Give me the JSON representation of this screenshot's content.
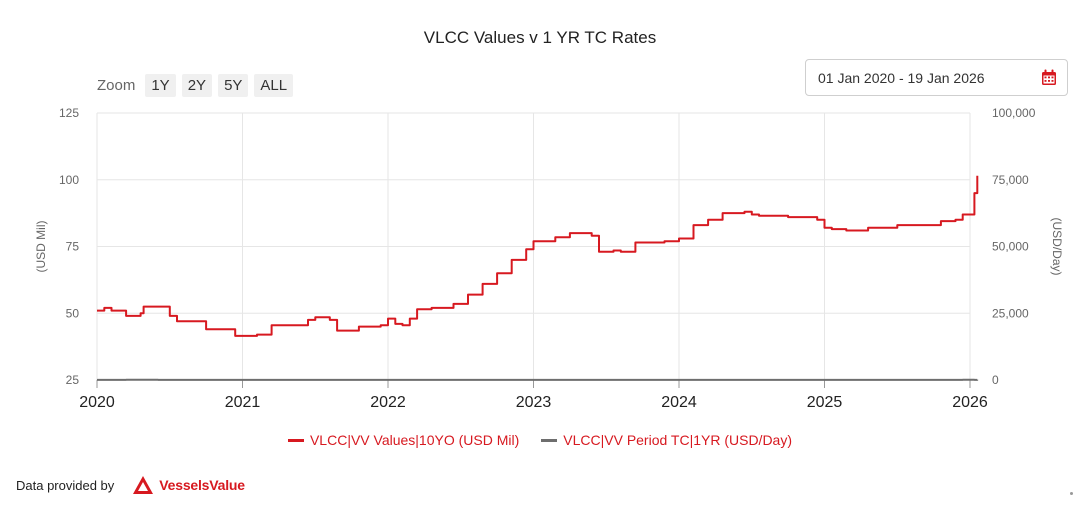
{
  "title": "VLCC Values v 1 YR TC Rates",
  "zoom": {
    "label": "Zoom",
    "buttons": [
      "1Y",
      "2Y",
      "5Y",
      "ALL"
    ]
  },
  "date_range": {
    "value": "01 Jan 2020 - 19 Jan 2026",
    "icon": "calendar-icon",
    "icon_color": "#d71920"
  },
  "footer": {
    "credit": "Data provided by",
    "logo_text": "VesselsValue",
    "logo_color": "#d71920"
  },
  "chart_data": {
    "type": "line",
    "title": "VLCC Values v 1 YR TC Rates",
    "x_axis": {
      "type": "year",
      "range": [
        2020.0,
        2026.0
      ],
      "ticks": [
        "2020",
        "2021",
        "2022",
        "2023",
        "2024",
        "2025",
        "2026"
      ]
    },
    "y_left": {
      "label": "(USD Mil)",
      "range": [
        25,
        125
      ],
      "ticks": [
        "25",
        "50",
        "75",
        "100",
        "125"
      ]
    },
    "y_right": {
      "label": "(USD/Day)",
      "range": [
        0,
        100000
      ],
      "ticks": [
        "0",
        "25,000",
        "50,000",
        "75,000",
        "100,000"
      ]
    },
    "grid": true,
    "legend_position": "bottom",
    "series": [
      {
        "name": "VLCC|VV Values|10YO (USD Mil)",
        "color": "#d71920",
        "axis": "left",
        "x": [
          2020.0,
          2020.05,
          2020.1,
          2020.2,
          2020.3,
          2020.32,
          2020.5,
          2020.55,
          2020.75,
          2020.95,
          2021.1,
          2021.2,
          2021.35,
          2021.45,
          2021.5,
          2021.6,
          2021.65,
          2021.8,
          2021.95,
          2022.0,
          2022.05,
          2022.1,
          2022.15,
          2022.2,
          2022.3,
          2022.45,
          2022.55,
          2022.65,
          2022.75,
          2022.85,
          2022.95,
          2023.0,
          2023.05,
          2023.15,
          2023.25,
          2023.35,
          2023.4,
          2023.45,
          2023.55,
          2023.6,
          2023.7,
          2023.9,
          2024.0,
          2024.1,
          2024.2,
          2024.3,
          2024.45,
          2024.5,
          2024.55,
          2024.75,
          2024.95,
          2025.0,
          2025.05,
          2025.15,
          2025.3,
          2025.5,
          2025.7,
          2025.8,
          2025.9,
          2025.95,
          2026.0,
          2026.03,
          2026.05
        ],
        "y": [
          51,
          52,
          51,
          49,
          50,
          52.5,
          49,
          47,
          44,
          41.5,
          42,
          45.5,
          45.5,
          47.5,
          48.5,
          47.5,
          43.5,
          45,
          45.5,
          48,
          46,
          45.5,
          48,
          51.5,
          52,
          53.5,
          57,
          61,
          65,
          70,
          74,
          77,
          77,
          78.5,
          80,
          80,
          79,
          73,
          73.5,
          73,
          76.5,
          77,
          78,
          83,
          85,
          87.5,
          88,
          87,
          86.5,
          86,
          85,
          82,
          81.5,
          81,
          82,
          83,
          83,
          84.5,
          85,
          87,
          87,
          95,
          101.5
        ]
      },
      {
        "name": "VLCC|VV Period TC|1YR (USD/Day)",
        "color": "#6e6e6e",
        "axis": "right",
        "x": [
          2020.0,
          2020.03,
          2020.08,
          2020.12,
          2020.16,
          2020.2,
          2020.23,
          2020.27,
          2020.3,
          2020.33,
          2020.37,
          2020.42,
          2020.48,
          2020.55,
          2020.65,
          2020.8,
          2021.0,
          2021.2,
          2021.3,
          2021.5,
          2021.7,
          2021.8,
          2021.9,
          2022.0,
          2022.1,
          2022.15,
          2022.25,
          2022.4,
          2022.55,
          2022.6,
          2022.65,
          2022.75,
          2022.85,
          2023.0,
          2023.05,
          2023.2,
          2023.3,
          2023.45,
          2023.55,
          2023.7,
          2023.85,
          2024.0,
          2024.1,
          2024.2,
          2024.3,
          2024.45,
          2024.6,
          2024.8,
          2025.0,
          2025.05,
          2025.1,
          2025.3,
          2025.45,
          2025.55,
          2025.6,
          2025.7,
          2025.8,
          2025.85,
          2025.9,
          2025.95,
          2026.0,
          2026.03,
          2026.05
        ],
        "y": [
          51,
          55,
          51,
          39,
          37,
          60,
          81,
          68,
          75,
          67,
          58,
          52,
          40,
          37,
          35,
          32,
          28,
          28.5,
          27.5,
          28,
          27,
          25,
          25,
          23,
          22,
          21.5,
          23,
          24.5,
          24,
          27,
          36,
          44,
          46,
          41,
          40,
          42,
          43.5,
          45,
          43,
          44,
          43.5,
          43.5,
          45,
          45.5,
          45.5,
          45.5,
          46,
          45,
          42,
          41.5,
          49,
          47,
          47,
          46,
          48,
          46,
          54,
          55,
          55,
          57,
          58,
          52,
          57
        ]
      }
    ]
  }
}
